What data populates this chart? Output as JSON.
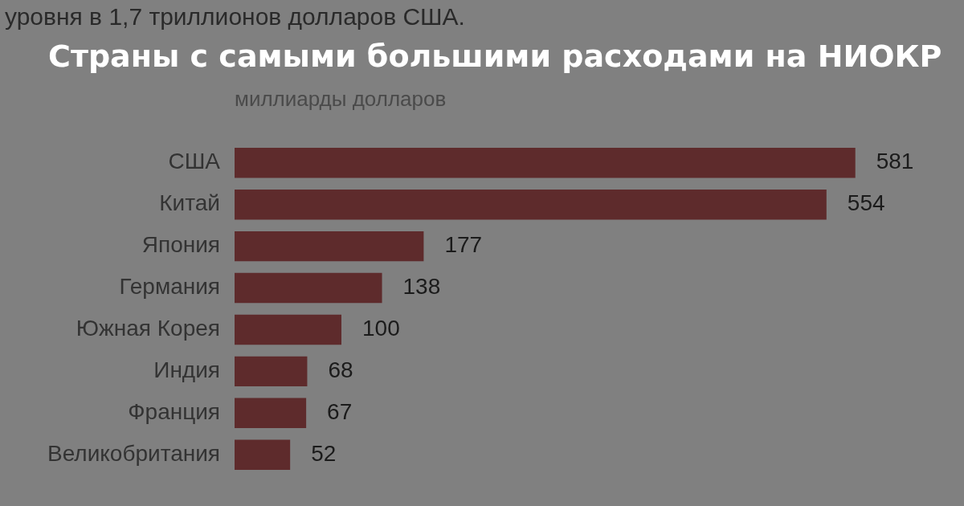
{
  "chart_data": {
    "type": "bar",
    "orientation": "horizontal",
    "title": "Страны с самыми большими расходами на НИОКР",
    "subtitle": "уровня в 1,7 триллионов долларов США.",
    "xlabel": "миллиарды долларов",
    "categories": [
      "США",
      "Китай",
      "Япония",
      "Германия",
      "Южная Корея",
      "Индия",
      "Франция",
      "Великобритания"
    ],
    "values": [
      581,
      554,
      177,
      138,
      100,
      68,
      67,
      52
    ],
    "color": "#5e2b2c",
    "data_labels": true,
    "tick_labels": "y"
  }
}
